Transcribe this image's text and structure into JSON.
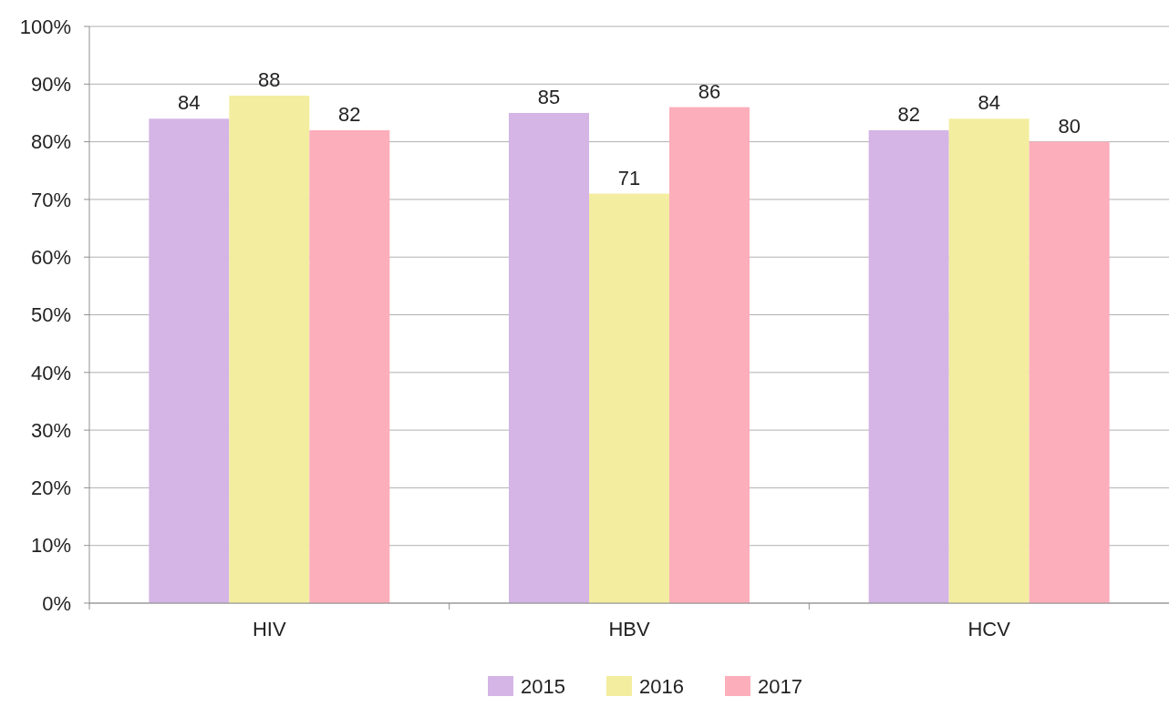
{
  "chart_data": {
    "type": "bar",
    "categories": [
      "HIV",
      "HBV",
      "HCV"
    ],
    "series": [
      {
        "name": "2015",
        "color": "#d4b5e5",
        "values": [
          84,
          85,
          82
        ]
      },
      {
        "name": "2016",
        "color": "#f3eda0",
        "values": [
          88,
          71,
          84
        ]
      },
      {
        "name": "2017",
        "color": "#fdaebb",
        "values": [
          82,
          86,
          80
        ]
      }
    ],
    "ylim": [
      0,
      100
    ],
    "yticks": [
      {
        "value": 0,
        "label": "0%"
      },
      {
        "value": 10,
        "label": "10%"
      },
      {
        "value": 20,
        "label": "20%"
      },
      {
        "value": 30,
        "label": "30%"
      },
      {
        "value": 40,
        "label": "40%"
      },
      {
        "value": 50,
        "label": "50%"
      },
      {
        "value": 60,
        "label": "60%"
      },
      {
        "value": 70,
        "label": "70%"
      },
      {
        "value": 80,
        "label": "80%"
      },
      {
        "value": 90,
        "label": "90%"
      },
      {
        "value": 100,
        "label": "100%"
      }
    ],
    "grid": "y",
    "legend": "bottom",
    "data_labels": true
  }
}
